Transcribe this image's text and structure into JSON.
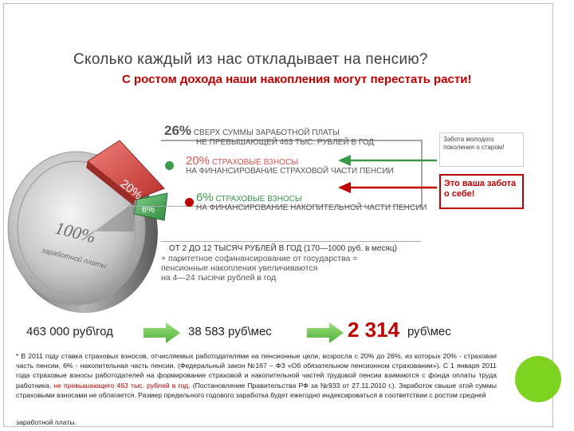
{
  "slide": {
    "title": "Сколько каждый из нас откладывает на пенсию?",
    "subtitle": "С ростом дохода наши накопления могут перестать расти!"
  },
  "infographic": {
    "coin_label_pct": "100%",
    "coin_label_text": "заработной платы",
    "wedge_red_label": "20%",
    "wedge_green_label": "6%",
    "total": {
      "pct": "26%",
      "line1": "СВЕРХ СУММЫ ЗАРАБОТНОЙ ПЛАТЫ",
      "line2": "НЕ ПРЕВЫШАЮЩЕЙ 463 ТЫС. РУБЛЕЙ В ГОД"
    },
    "insurance_part": {
      "pct": "20%",
      "line1": "СТРАХОВЫЕ ВЗНОСЫ",
      "line2": "НА ФИНАНСИРОВАНИЕ СТРАХОВОЙ ЧАСТИ ПЕНСИИ"
    },
    "funded_part": {
      "pct": "6%",
      "line1": "СТРАХОВЫЕ ВЗНОСЫ",
      "line2": "НА ФИНАНСИРОВАНИЕ НАКОПИТЕЛЬНОЙ ЧАСТИ ПЕНСИИ"
    },
    "range_text": "ОТ 2 ДО 12 ТЫСЯЧ РУБЛЕЙ В ГОД (170—1000 руб. в месяц)",
    "bullets": [
      "+ паритетное софинансирование от государства =",
      "пенсионные накопления увеличиваются",
      "на 4—24 тысячи рублей в год"
    ],
    "colors": {
      "red": "#d9534f",
      "green": "#3a9a4a",
      "accent": "#c00000"
    }
  },
  "notes": {
    "older_care": "Забота молодого поколения о старом!",
    "own_care": "Это ваша забота о себе!"
  },
  "flow": {
    "annual": "463 000 руб\\год",
    "monthly": "38 583 руб\\мес",
    "result_value": "2 314",
    "result_unit": "руб\\мес"
  },
  "footnote": {
    "part1": "* В 2011 году ставка страховых взносов, отчисляемых работодателями на пенсионные цели, возросла с 20% до 26%, из которых 20% - страховая часть пенсии, 6% - накопительная часть пенсии. (Федеральный закон №167 – ФЗ «Об обязательном пенсионном страховании»). С 1 января 2011 года страховые взносы работодателей на формирование страховой и накопительной частей трудовой пенсии взимаются с фонда оплаты труда работника, ",
    "highlight": "не превышающего 463 тыс. рублей в год",
    "part2": ". (Постановление Правительства РФ за №933 от 27.11.2010 г.). Заработок свыше этой суммы страховыми взносами не облагается. Размер предельного годового заработка будет ежегодно индексироваться в соответствии с ростом средней",
    "last": "заработной платы."
  }
}
